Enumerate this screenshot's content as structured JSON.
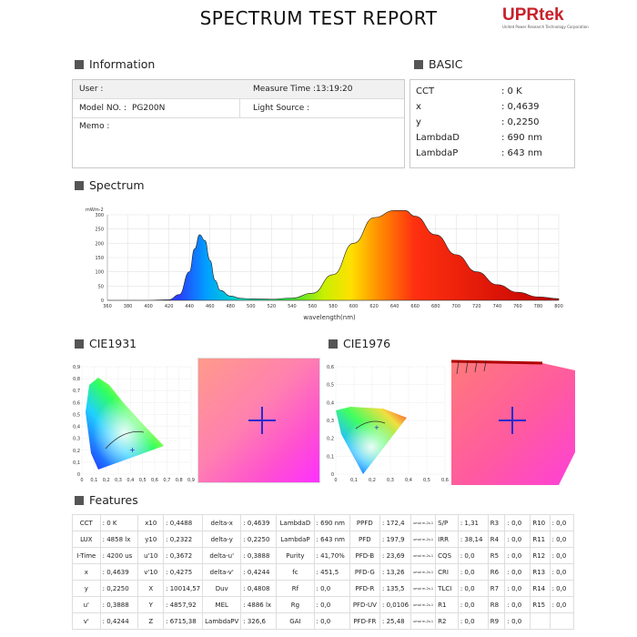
{
  "header": {
    "title": "SPECTRUM TEST REPORT",
    "logo": "UPRtek",
    "logo_sub": "United Power Research Technology Corporation"
  },
  "info": {
    "section": "Information",
    "user_label": "User :",
    "measure_time": "Measure Time :13:19:20",
    "model_label": "Model NO. :",
    "model_value": "PG200N",
    "light_source": "Light Source :",
    "memo": "Memo :"
  },
  "basic": {
    "section": "BASIC",
    "rows": [
      {
        "k": "CCT",
        "v": ": 0 K"
      },
      {
        "k": "x",
        "v": ": 0,4639"
      },
      {
        "k": "y",
        "v": ": 0,2250"
      },
      {
        "k": "LambdaD",
        "v": ": 690 nm"
      },
      {
        "k": "LambdaP",
        "v": ": 643 nm"
      }
    ]
  },
  "spectrum": {
    "section": "Spectrum",
    "y_unit": "mWm-2",
    "x_label": "wavelength(nm)"
  },
  "chart_data": {
    "type": "area",
    "title": "",
    "xlabel": "wavelength(nm)",
    "ylabel": "mWm-2",
    "xlim": [
      360,
      800
    ],
    "ylim": [
      0,
      300
    ],
    "x": [
      360,
      380,
      400,
      420,
      430,
      440,
      445,
      450,
      455,
      460,
      465,
      470,
      480,
      490,
      500,
      520,
      540,
      560,
      580,
      600,
      620,
      640,
      650,
      660,
      680,
      700,
      720,
      740,
      760,
      780,
      800
    ],
    "y": [
      0,
      0,
      0,
      2,
      20,
      100,
      180,
      230,
      210,
      140,
      70,
      35,
      15,
      7,
      5,
      4,
      8,
      25,
      90,
      200,
      290,
      320,
      315,
      295,
      230,
      160,
      100,
      55,
      28,
      12,
      6
    ],
    "yticks": [
      0,
      50,
      100,
      150,
      200,
      250,
      300
    ],
    "xticks": [
      360,
      380,
      400,
      420,
      440,
      460,
      480,
      500,
      520,
      540,
      560,
      580,
      600,
      620,
      640,
      660,
      680,
      700,
      720,
      740,
      760,
      780,
      800
    ],
    "grid": true
  },
  "cie1931": {
    "section": "CIE1931",
    "ticks": [
      "0,9",
      "0,8",
      "0,7",
      "0,6",
      "0,5",
      "0,4",
      "0,3",
      "0,2",
      "0,1",
      "0"
    ],
    "xticks": [
      "0",
      "0,1",
      "0,2",
      "0,3",
      "0,4",
      "0,5",
      "0,6",
      "0,7",
      "0,8",
      "0,9"
    ]
  },
  "cie1976": {
    "section": "CIE1976",
    "ticks": [
      "0,6",
      "0,5",
      "0,4",
      "0,3",
      "0,2",
      "0,1",
      "0"
    ],
    "xticks": [
      "0",
      "0,1",
      "0,2",
      "0,3",
      "0,4",
      "0,5",
      "0,6"
    ]
  },
  "features": {
    "section": "Features",
    "rows": [
      [
        "CCT",
        ": 0 K",
        "x10",
        ": 0,4488",
        "delta-x",
        ": 0,4639",
        "LambdaD",
        ": 690 nm",
        "PPFD",
        ": 172,4",
        "umol m-2s-1",
        "S/P",
        ": 1,31",
        "R3",
        ": 0,0",
        "R10",
        ": 0,0"
      ],
      [
        "LUX",
        ": 4858 lx",
        "y10",
        ": 0,2322",
        "delta-y",
        ": 0,2250",
        "LambdaP",
        ": 643 nm",
        "PFD",
        ": 197,9",
        "umol m-2s-1",
        "IRR",
        ": 38,14",
        "R4",
        ": 0,0",
        "R11",
        ": 0,0"
      ],
      [
        "I-Time",
        ": 4200 us",
        "u'10",
        ": 0,3672",
        "delta-u'",
        ": 0,3888",
        "Purity",
        ": 41,70%",
        "PFD-B",
        ": 23,69",
        "umol m-2s-1",
        "CQS",
        ": 0,0",
        "R5",
        ": 0,0",
        "R12",
        ": 0,0"
      ],
      [
        "x",
        ": 0,4639",
        "v'10",
        ": 0,4275",
        "delta-v'",
        ": 0,4244",
        "fc",
        ": 451,5",
        "PFD-G",
        ": 13,26",
        "umol m-2s-1",
        "CRI",
        ": 0,0",
        "R6",
        ": 0,0",
        "R13",
        ": 0,0"
      ],
      [
        "y",
        ": 0,2250",
        "X",
        ": 10014,57",
        "Duv",
        ": 0,4808",
        "Rf",
        ": 0,0",
        "PFD-R",
        ": 135,5",
        "umol m-2s-1",
        "TLCI",
        ": 0,0",
        "R7",
        ": 0,0",
        "R14",
        ": 0,0"
      ],
      [
        "u'",
        ": 0,3888",
        "Y",
        ": 4857,92",
        "MEL",
        ": 4886 lx",
        "Rg",
        ": 0,0",
        "PFD-UV",
        ": 0,0106",
        "umol m-2s-1",
        "R1",
        ": 0,0",
        "R8",
        ": 0,0",
        "R15",
        ": 0,0"
      ],
      [
        "v'",
        ": 0,4244",
        "Z",
        ": 6715,38",
        "LambdaPV",
        ": 326,6",
        "GAI",
        ": 0,0",
        "PFD-FR",
        ": 25,48",
        "umol m-2s-1",
        "R2",
        ": 0,0",
        "R9",
        ": 0,0",
        "",
        ""
      ]
    ]
  }
}
